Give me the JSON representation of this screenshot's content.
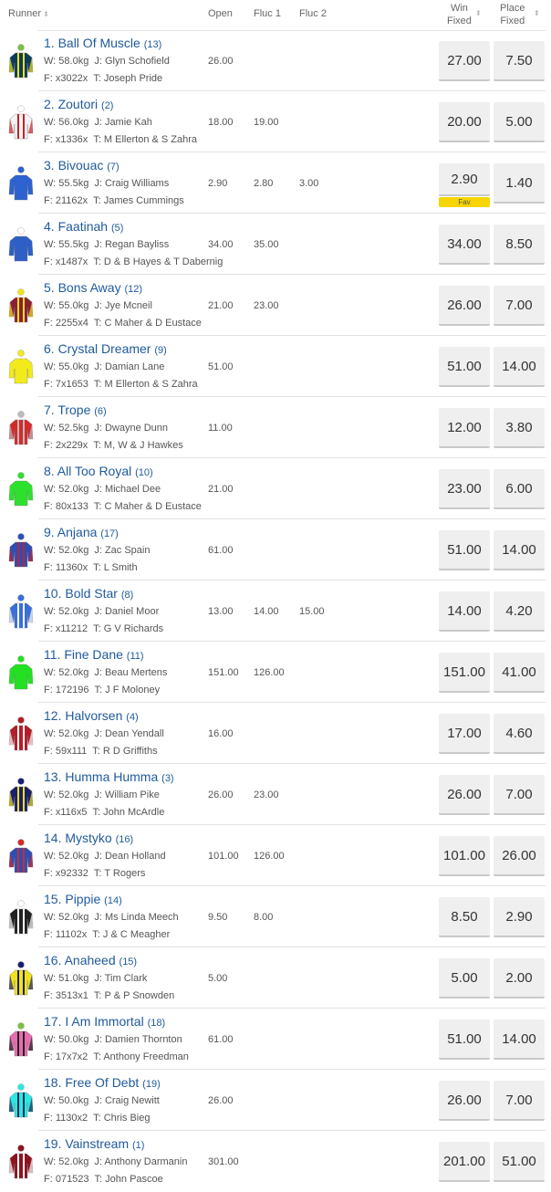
{
  "header": {
    "runner": "Runner",
    "open": "Open",
    "fluc1": "Fluc 1",
    "fluc2": "Fluc 2",
    "win_line1": "Win",
    "win_line2": "Fixed",
    "place_line1": "Place",
    "place_line2": "Fixed",
    "sort_icon": "sort-arrows-icon"
  },
  "fav_label": "Fav",
  "runners": [
    {
      "name": "1. Ball Of Muscle",
      "barrier": "(13)",
      "weight": "W: 58.0kg",
      "jockey": "J: Glyn Schofield",
      "form": "F: x3022x",
      "trainer": "T: Joseph Pride",
      "open": "26.00",
      "fluc1": "",
      "fluc2": "",
      "win": "27.00",
      "place": "7.50",
      "silk": [
        "#0d3b5e",
        "#f2e21a",
        "#7ac143"
      ]
    },
    {
      "name": "2. Zoutori",
      "barrier": "(2)",
      "weight": "W: 56.0kg",
      "jockey": "J: Jamie Kah",
      "form": "F: x1336x",
      "trainer": "T: M Ellerton & S Zahra",
      "open": "18.00",
      "fluc1": "19.00",
      "fluc2": "",
      "win": "20.00",
      "place": "5.00",
      "silk": [
        "#f4f4f4",
        "#c8202a",
        "#ffffff"
      ]
    },
    {
      "name": "3. Bivouac",
      "barrier": "(7)",
      "weight": "W: 55.5kg",
      "jockey": "J: Craig Williams",
      "form": "F: 21162x",
      "trainer": "T: James Cummings",
      "open": "2.90",
      "fluc1": "2.80",
      "fluc2": "3.00",
      "win": "2.90",
      "place": "1.40",
      "fav": true,
      "silk": [
        "#2e62d0",
        "#2e62d0",
        "#2e62d0"
      ]
    },
    {
      "name": "4. Faatinah",
      "barrier": "(5)",
      "weight": "W: 55.5kg",
      "jockey": "J: Regan Bayliss",
      "form": "F: x1487x",
      "trainer": "T: D & B Hayes & T Dabernig",
      "open": "34.00",
      "fluc1": "35.00",
      "fluc2": "",
      "win": "34.00",
      "place": "8.50",
      "silk": [
        "#2e5fc6",
        "#2e5fc6",
        "#ffffff"
      ]
    },
    {
      "name": "5. Bons Away",
      "barrier": "(12)",
      "weight": "W: 55.0kg",
      "jockey": "J: Jye Mcneil",
      "form": "F: 2255x4",
      "trainer": "T: C Maher & D Eustace",
      "open": "21.00",
      "fluc1": "23.00",
      "fluc2": "",
      "win": "26.00",
      "place": "7.00",
      "silk": [
        "#8a1f3a",
        "#f2e21a",
        "#f2e21a"
      ]
    },
    {
      "name": "6. Crystal Dreamer",
      "barrier": "(9)",
      "weight": "W: 55.0kg",
      "jockey": "J: Damian Lane",
      "form": "F: 7x1653",
      "trainer": "T: M Ellerton & S Zahra",
      "open": "51.00",
      "fluc1": "",
      "fluc2": "",
      "win": "51.00",
      "place": "14.00",
      "silk": [
        "#f2ea1a",
        "#f2ea1a",
        "#f2ea1a"
      ]
    },
    {
      "name": "7. Trope",
      "barrier": "(6)",
      "weight": "W: 52.5kg",
      "jockey": "J: Dwayne Dunn",
      "form": "F: 2x229x",
      "trainer": "T: M, W & J Hawkes",
      "open": "11.00",
      "fluc1": "",
      "fluc2": "",
      "win": "12.00",
      "place": "3.80",
      "silk": [
        "#d42a2a",
        "#bbbbbb",
        "#bbbbbb"
      ]
    },
    {
      "name": "8. All Too Royal",
      "barrier": "(10)",
      "weight": "W: 52.0kg",
      "jockey": "J: Michael Dee",
      "form": "F: 80x133",
      "trainer": "T: C Maher & D Eustace",
      "open": "21.00",
      "fluc1": "",
      "fluc2": "",
      "win": "23.00",
      "place": "6.00",
      "silk": [
        "#2ee02e",
        "#2ee02e",
        "#2ee02e"
      ]
    },
    {
      "name": "9. Anjana",
      "barrier": "(17)",
      "weight": "W: 52.0kg",
      "jockey": "J: Zac Spain",
      "form": "F: 11360x",
      "trainer": "T: L Smith",
      "open": "61.00",
      "fluc1": "",
      "fluc2": "",
      "win": "51.00",
      "place": "14.00",
      "silk": [
        "#2a4fb8",
        "#c8202a",
        "#2a4fb8"
      ]
    },
    {
      "name": "10. Bold Star",
      "barrier": "(8)",
      "weight": "W: 52.0kg",
      "jockey": "J: Daniel Moor",
      "form": "F: x11212",
      "trainer": "T: G V Richards",
      "open": "13.00",
      "fluc1": "14.00",
      "fluc2": "15.00",
      "win": "14.00",
      "place": "4.20",
      "silk": [
        "#3a6fd8",
        "#ffffff",
        "#3a6fd8"
      ]
    },
    {
      "name": "11. Fine Dane",
      "barrier": "(11)",
      "weight": "W: 52.0kg",
      "jockey": "J: Beau Mertens",
      "form": "F: 172196",
      "trainer": "T: J F Moloney",
      "open": "151.00",
      "fluc1": "126.00",
      "fluc2": "",
      "win": "151.00",
      "place": "41.00",
      "silk": [
        "#22e022",
        "#22e022",
        "#22e022"
      ]
    },
    {
      "name": "12. Halvorsen",
      "barrier": "(4)",
      "weight": "W: 52.0kg",
      "jockey": "J: Dean Yendall",
      "form": "F: 59x111",
      "trainer": "T: R D Griffiths",
      "open": "16.00",
      "fluc1": "",
      "fluc2": "",
      "win": "17.00",
      "place": "4.60",
      "silk": [
        "#b01e2a",
        "#ffffff",
        "#b01e2a"
      ]
    },
    {
      "name": "13. Humma Humma",
      "barrier": "(3)",
      "weight": "W: 52.0kg",
      "jockey": "J: William Pike",
      "form": "F: x116x5",
      "trainer": "T: John McArdle",
      "open": "26.00",
      "fluc1": "23.00",
      "fluc2": "",
      "win": "26.00",
      "place": "7.00",
      "silk": [
        "#1a1f6e",
        "#f2e21a",
        "#1a1f6e"
      ]
    },
    {
      "name": "14. Mystyko",
      "barrier": "(16)",
      "weight": "W: 52.0kg",
      "jockey": "J: Dean Holland",
      "form": "F: x92332",
      "trainer": "T: T Rogers",
      "open": "101.00",
      "fluc1": "126.00",
      "fluc2": "",
      "win": "101.00",
      "place": "26.00",
      "silk": [
        "#2a4fb8",
        "#d42a2a",
        "#d42a2a"
      ]
    },
    {
      "name": "15. Pippie",
      "barrier": "(14)",
      "weight": "W: 52.0kg",
      "jockey": "J: Ms Linda Meech",
      "form": "F: 11102x",
      "trainer": "T: J & C Meagher",
      "open": "9.50",
      "fluc1": "8.00",
      "fluc2": "",
      "win": "8.50",
      "place": "2.90",
      "silk": [
        "#222222",
        "#ffffff",
        "#ffffff"
      ]
    },
    {
      "name": "16. Anaheed",
      "barrier": "(15)",
      "weight": "W: 51.0kg",
      "jockey": "J: Tim Clark",
      "form": "F: 3513x1",
      "trainer": "T: P & P Snowden",
      "open": "5.00",
      "fluc1": "",
      "fluc2": "",
      "win": "5.00",
      "place": "2.00",
      "silk": [
        "#f2e21a",
        "#1a1f6e",
        "#1a1f6e"
      ]
    },
    {
      "name": "17. I Am Immortal",
      "barrier": "(18)",
      "weight": "W: 50.0kg",
      "jockey": "J: Damien Thornton",
      "form": "F: 17x7x2",
      "trainer": "T: Anthony Freedman",
      "open": "61.00",
      "fluc1": "",
      "fluc2": "",
      "win": "51.00",
      "place": "14.00",
      "silk": [
        "#e86db0",
        "#222222",
        "#7ac143"
      ]
    },
    {
      "name": "18. Free Of Debt",
      "barrier": "(19)",
      "weight": "W: 50.0kg",
      "jockey": "J: Craig Newitt",
      "form": "F: 1130x2",
      "trainer": "T: Chris Bieg",
      "open": "26.00",
      "fluc1": "",
      "fluc2": "",
      "win": "26.00",
      "place": "7.00",
      "silk": [
        "#2ee8e0",
        "#1a2a5e",
        "#2ee8e0"
      ]
    },
    {
      "name": "19. Vainstream",
      "barrier": "(1)",
      "weight": "W: 52.0kg",
      "jockey": "J: Anthony Darmanin",
      "form": "F: 071523",
      "trainer": "T: John Pascoe",
      "open": "301.00",
      "fluc1": "",
      "fluc2": "",
      "win": "201.00",
      "place": "51.00",
      "silk": [
        "#8a1420",
        "#ffffff",
        "#8a1420"
      ]
    }
  ]
}
